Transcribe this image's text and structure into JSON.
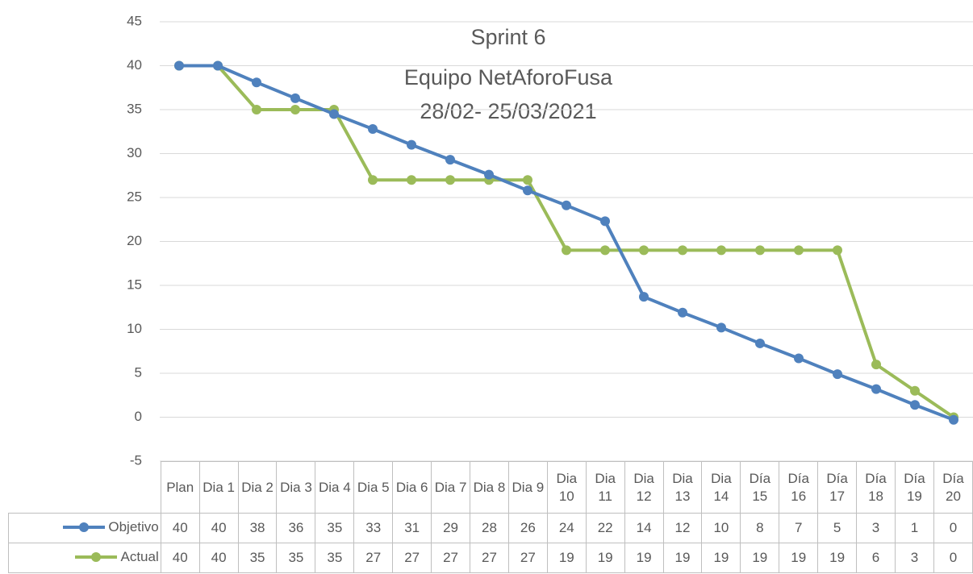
{
  "chart_data": {
    "type": "line",
    "title": [
      "Sprint 6",
      "Equipo NetAforoFusa",
      "28/02- 25/03/2021"
    ],
    "categories": [
      "Plan",
      "Dia 1",
      "Dia 2",
      "Dia 3",
      "Dia 4",
      "Dia 5",
      "Dia 6",
      "Dia 7",
      "Dia 8",
      "Dia 9",
      "Dia 10",
      "Dia 11",
      "Dia 12",
      "Dia 13",
      "Dia 14",
      "Día 15",
      "Día 16",
      "Día 17",
      "Día 18",
      "Día 19",
      "Día 20"
    ],
    "series": [
      {
        "name": "Objetivo",
        "color": "#4f81bd",
        "values": [
          40,
          40,
          38.1,
          36.3,
          34.5,
          32.8,
          31.0,
          29.3,
          27.6,
          25.8,
          24.1,
          22.3,
          13.7,
          11.9,
          10.2,
          8.4,
          6.7,
          4.9,
          3.2,
          1.4,
          -0.3
        ],
        "value_labels": [
          "40",
          "40",
          "38",
          "36",
          "35",
          "33",
          "31",
          "29",
          "28",
          "26",
          "24",
          "22",
          "14",
          "12",
          "10",
          "8",
          "7",
          "5",
          "3",
          "1",
          "0"
        ]
      },
      {
        "name": "Actual",
        "color": "#9bbb59",
        "values": [
          40,
          40,
          35,
          35,
          35,
          27,
          27,
          27,
          27,
          27,
          19,
          19,
          19,
          19,
          19,
          19,
          19,
          19,
          6,
          3,
          0
        ]
      }
    ],
    "ylim": [
      -5,
      45
    ],
    "yticks": [
      -5,
      0,
      5,
      10,
      15,
      20,
      25,
      30,
      35,
      40,
      45
    ],
    "grid": true
  }
}
